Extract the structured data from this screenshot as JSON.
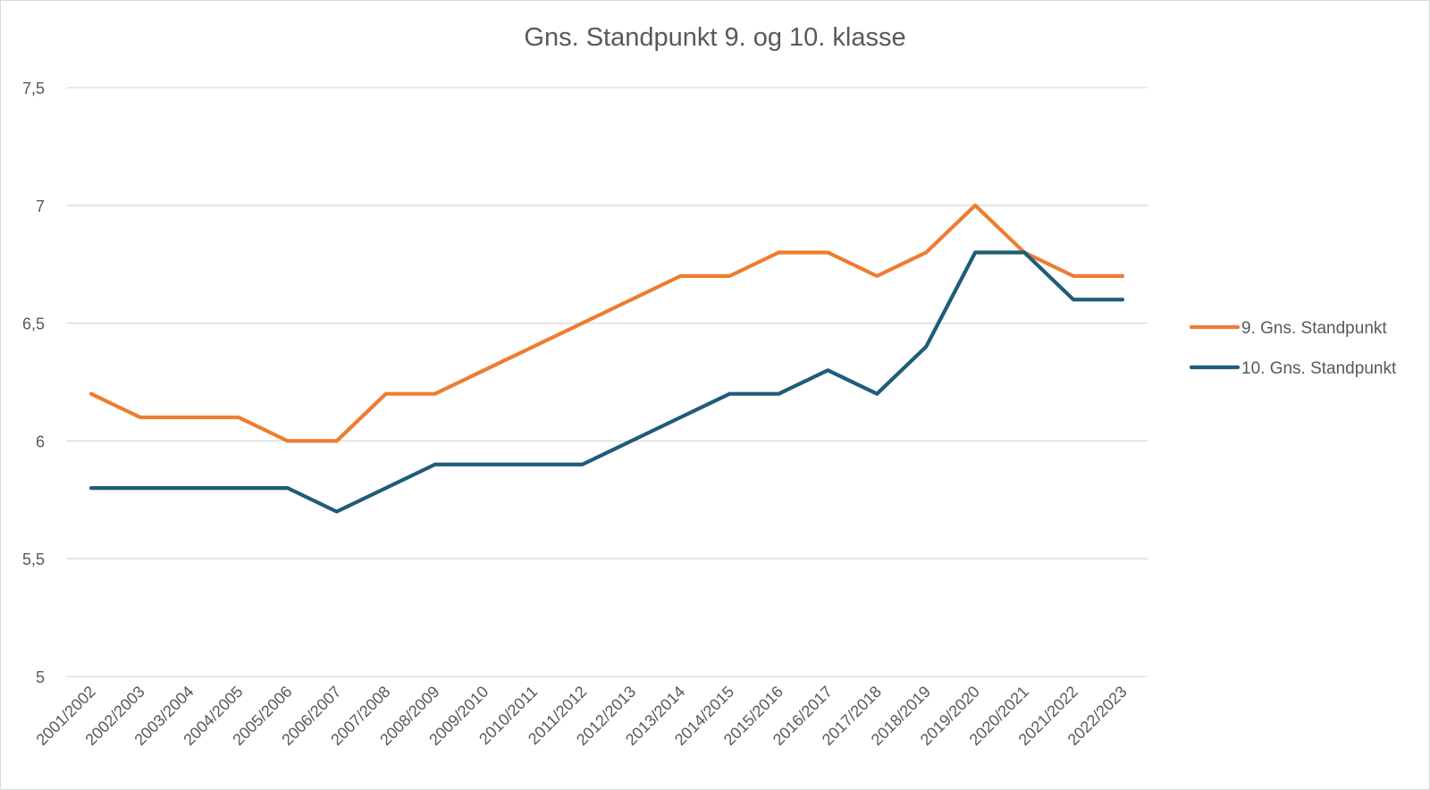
{
  "chart_data": {
    "type": "line",
    "title": "Gns. Standpunkt 9. og 10. klasse",
    "xlabel": "",
    "ylabel": "",
    "categories": [
      "2001/2002",
      "2002/2003",
      "2003/2004",
      "2004/2005",
      "2005/2006",
      "2006/2007",
      "2007/2008",
      "2008/2009",
      "2009/2010",
      "2010/2011",
      "2011/2012",
      "2012/2013",
      "2013/2014",
      "2014/2015",
      "2015/2016",
      "2016/2017",
      "2017/2018",
      "2018/2019",
      "2019/2020",
      "2020/2021",
      "2021/2022",
      "2022/2023"
    ],
    "ylim": [
      5,
      7.5
    ],
    "yticks": [
      "5",
      "5,5",
      "6",
      "6,5",
      "7",
      "7,5"
    ],
    "ytick_values": [
      5,
      5.5,
      6,
      6.5,
      7,
      7.5
    ],
    "grid": true,
    "legend_position": "right",
    "series": [
      {
        "name": "9. Gns. Standpunkt",
        "color": "#ED7D31",
        "values": [
          6.2,
          6.1,
          6.1,
          6.1,
          6.0,
          6.0,
          6.2,
          6.2,
          6.3,
          6.4,
          6.5,
          6.6,
          6.7,
          6.7,
          6.8,
          6.8,
          6.7,
          6.8,
          7.0,
          6.8,
          6.7,
          6.7
        ]
      },
      {
        "name": "10. Gns. Standpunkt",
        "color": "#1F5C7A",
        "values": [
          5.8,
          5.8,
          5.8,
          5.8,
          5.8,
          5.7,
          5.8,
          5.9,
          5.9,
          5.9,
          5.9,
          6.0,
          6.1,
          6.2,
          6.2,
          6.3,
          6.2,
          6.4,
          6.8,
          6.8,
          6.6,
          6.6
        ]
      }
    ]
  }
}
